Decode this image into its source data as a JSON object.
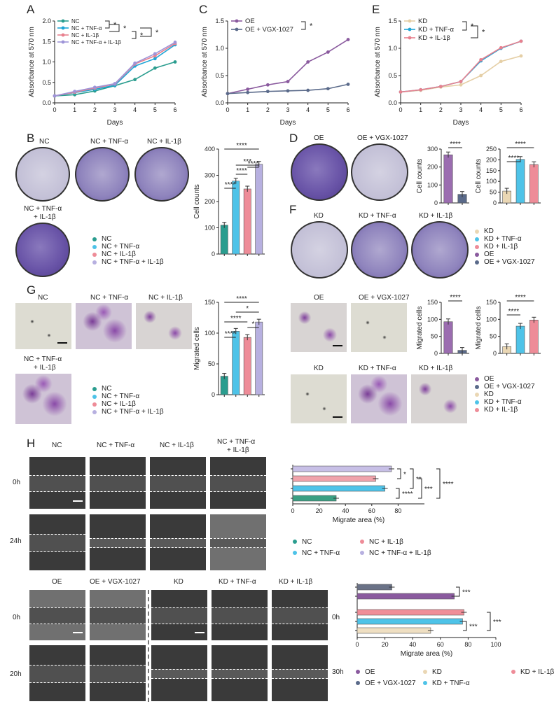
{
  "panels": {
    "A": "A",
    "B": "B",
    "C": "C",
    "D": "D",
    "E": "E",
    "F": "F",
    "G": "G",
    "H": "H"
  },
  "chart_data": [
    {
      "id": "A",
      "type": "line",
      "xlabel": "Days",
      "ylabel": "Absorbance at 570 nm",
      "x": [
        0,
        1,
        2,
        3,
        4,
        5,
        6
      ],
      "xlim": [
        0,
        6
      ],
      "ylim": [
        0,
        2.0
      ],
      "yticks": [
        "0.0",
        "0.5",
        "1.0",
        "1.5",
        "2.0"
      ],
      "series": [
        {
          "name": "NC",
          "color": "#2a9d8f",
          "values": [
            0.17,
            0.2,
            0.29,
            0.42,
            0.57,
            0.85,
            1.0
          ]
        },
        {
          "name": "NC + TNF-α",
          "color": "#1fa5d6",
          "values": [
            0.17,
            0.25,
            0.33,
            0.43,
            0.9,
            1.08,
            1.42
          ]
        },
        {
          "name": "NC + IL-1β",
          "color": "#e8808e",
          "values": [
            0.17,
            0.26,
            0.36,
            0.46,
            0.95,
            1.15,
            1.45
          ]
        },
        {
          "name": "NC + TNF-α + IL-1β",
          "color": "#9e94d8",
          "values": [
            0.17,
            0.28,
            0.38,
            0.47,
            0.97,
            1.2,
            1.48
          ]
        }
      ],
      "sig": [
        "*",
        "*",
        "*",
        "*"
      ]
    },
    {
      "id": "C",
      "type": "line",
      "xlabel": "Days",
      "ylabel": "Absorbance at 570 nm",
      "x": [
        0,
        1,
        2,
        3,
        4,
        5,
        6
      ],
      "xlim": [
        0,
        6
      ],
      "ylim": [
        0,
        1.5
      ],
      "yticks": [
        "0.0",
        "0.5",
        "1.0",
        "1.5"
      ],
      "series": [
        {
          "name": "OE",
          "color": "#8a5a9e",
          "values": [
            0.17,
            0.25,
            0.33,
            0.39,
            0.75,
            0.93,
            1.16
          ]
        },
        {
          "name": "OE + VGX-1027",
          "color": "#5a6a8a",
          "values": [
            0.17,
            0.19,
            0.21,
            0.22,
            0.23,
            0.26,
            0.34
          ]
        }
      ],
      "sig": [
        "*"
      ]
    },
    {
      "id": "E",
      "type": "line",
      "xlabel": "Days",
      "ylabel": "Absorbance at 570 nm",
      "x": [
        0,
        1,
        2,
        3,
        4,
        5,
        6
      ],
      "xlim": [
        0,
        6
      ],
      "ylim": [
        0,
        1.5
      ],
      "yticks": [
        "0.0",
        "0.5",
        "1.0",
        "1.5"
      ],
      "series": [
        {
          "name": "KD",
          "color": "#e5cfa6",
          "values": [
            0.2,
            0.23,
            0.29,
            0.33,
            0.5,
            0.76,
            0.86
          ]
        },
        {
          "name": "KD + TNF-α",
          "color": "#1fa5d6",
          "values": [
            0.2,
            0.24,
            0.3,
            0.39,
            0.77,
            1.0,
            1.13
          ]
        },
        {
          "name": "KD + IL-1β",
          "color": "#e8808e",
          "values": [
            0.2,
            0.24,
            0.3,
            0.39,
            0.79,
            1.01,
            1.13
          ]
        }
      ],
      "sig": [
        "*",
        "*"
      ]
    },
    {
      "id": "B_bar",
      "type": "bar",
      "ylabel": "Cell counts",
      "ylim": [
        0,
        400
      ],
      "yticks": [
        "0",
        "100",
        "200",
        "300",
        "400"
      ],
      "categories": [
        "NC",
        "NC + TNF-α",
        "NC + IL-1β",
        "NC + TNF-α + IL-1β"
      ],
      "values": [
        110,
        278,
        248,
        342
      ],
      "colors": [
        "#2a9d8f",
        "#4ec3e8",
        "#ee8c98",
        "#b7b0e0"
      ],
      "sig": [
        "****",
        "****",
        "****",
        "***",
        "****"
      ]
    },
    {
      "id": "D_bar1",
      "type": "bar",
      "ylabel": "Cell counts",
      "ylim": [
        0,
        300
      ],
      "yticks": [
        "0",
        "100",
        "200",
        "300"
      ],
      "categories": [
        "OE",
        "OE + VGX-1027"
      ],
      "values": [
        268,
        48
      ],
      "colors": [
        "#9b6db0",
        "#5a6a8a"
      ],
      "sig": [
        "****"
      ]
    },
    {
      "id": "D_bar2",
      "type": "bar",
      "ylabel": "Cell counts",
      "ylim": [
        0,
        250
      ],
      "yticks": [
        "0",
        "50",
        "100",
        "150",
        "200",
        "250"
      ],
      "categories": [
        "KD",
        "KD + TNF-α",
        "KD + IL-1β"
      ],
      "values": [
        55,
        202,
        178
      ],
      "colors": [
        "#ead7b4",
        "#4ec3e8",
        "#ee8c98"
      ],
      "sig": [
        "****",
        "****"
      ]
    },
    {
      "id": "G_bar",
      "type": "bar",
      "ylabel": "Migrated cells",
      "ylim": [
        0,
        150
      ],
      "yticks": [
        "0",
        "50",
        "100",
        "150"
      ],
      "categories": [
        "NC",
        "NC + TNF-α",
        "NC + IL-1β",
        "NC + TNF-α + IL-1β"
      ],
      "values": [
        30,
        103,
        93,
        118
      ],
      "colors": [
        "#2a9d8f",
        "#4ec3e8",
        "#ee8c98",
        "#b7b0e0"
      ],
      "sig": [
        "****",
        "****",
        "****",
        "*",
        "*"
      ]
    },
    {
      "id": "G_bar2",
      "type": "bar",
      "ylabel": "Migrated cells",
      "ylim": [
        0,
        150
      ],
      "yticks": [
        "0",
        "50",
        "100",
        "150"
      ],
      "categories": [
        "OE",
        "OE + VGX-1027"
      ],
      "values": [
        93,
        9
      ],
      "colors": [
        "#9b6db0",
        "#5a6a8a"
      ],
      "sig": [
        "****"
      ]
    },
    {
      "id": "G_bar3",
      "type": "bar",
      "ylabel": "Migrated cells",
      "ylim": [
        0,
        150
      ],
      "yticks": [
        "0",
        "50",
        "100",
        "150"
      ],
      "categories": [
        "KD",
        "KD + TNF-α",
        "KD + IL-1β"
      ],
      "values": [
        20,
        80,
        98
      ],
      "colors": [
        "#ead7b4",
        "#4ec3e8",
        "#ee8c98"
      ],
      "sig": [
        "****",
        "****"
      ]
    },
    {
      "id": "H_bar1",
      "type": "bar",
      "orientation": "horizontal",
      "xlabel": "Migrate area (%)",
      "xlim": [
        0,
        100
      ],
      "xticks": [
        "0",
        "20",
        "40",
        "60",
        "80"
      ],
      "categories": [
        "NC + TNF-α + IL-1β",
        "NC + IL-1β",
        "NC + TNF-α",
        "NC"
      ],
      "values": [
        75,
        63,
        70,
        33
      ],
      "colors": [
        "#c7bfe6",
        "#f0a3ab",
        "#4ec3e8",
        "#3a9f83"
      ],
      "sig": [
        "*",
        "**",
        "****",
        "***",
        "****"
      ]
    },
    {
      "id": "H_bar2",
      "type": "bar",
      "orientation": "horizontal",
      "xlabel": "Migrate area (%)",
      "xlim": [
        0,
        100
      ],
      "xticks": [
        "0",
        "20",
        "40",
        "60",
        "80",
        "100"
      ],
      "categories": [
        "OE + VGX-1027",
        "OE",
        "KD + IL-1β",
        "KD + TNF-α",
        "KD"
      ],
      "values": [
        25,
        70,
        77,
        76,
        53
      ],
      "colors": [
        "#6a7287",
        "#8a5a9e",
        "#ef8d97",
        "#4ec3e8",
        "#efdfc2"
      ],
      "sig": [
        "***",
        "***",
        "***"
      ]
    }
  ],
  "labels": {
    "days": "Days",
    "B_titles": [
      "NC",
      "NC + TNF-α",
      "NC + IL-1β"
    ],
    "B_title4a": "NC + TNF-α",
    "B_title4b": "+ IL-1β",
    "D_titles": [
      "OE",
      "OE + VGX-1027"
    ],
    "F_titles": [
      "KD",
      "KD + TNF-α",
      "KD + IL-1β"
    ],
    "G_titles": [
      "NC",
      "NC + TNF-α",
      "NC + IL-1β"
    ],
    "G_title4a": "NC + TNF-α",
    "G_title4b": "+ IL-1β",
    "G2_titles": [
      "OE",
      "OE + VGX-1027"
    ],
    "G3_titles": [
      "KD",
      "KD + TNF-α",
      "KD + IL-1β"
    ],
    "H_titles": [
      "NC",
      "NC + TNF-α",
      "NC + IL-1β"
    ],
    "H_title4a": "NC + TNF-α",
    "H_title4b": "+ IL-1β",
    "H2_titles": [
      "OE",
      "OE + VGX-1027",
      "KD",
      "KD + TNF-α",
      "KD + IL-1β"
    ],
    "times": [
      "0h",
      "24h",
      "0h",
      "20h",
      "0h",
      "30h"
    ]
  },
  "legends": {
    "nc": [
      "NC",
      "NC + TNF-α",
      "NC + IL-1β",
      "NC + TNF-α + IL-1β"
    ],
    "kdoe": [
      "KD",
      "KD + TNF-α",
      "KD + IL-1β",
      "OE",
      "OE + VGX-1027"
    ],
    "oekd": [
      "OE",
      "OE + VGX-1027",
      "KD",
      "KD + TNF-α",
      "KD + IL-1β"
    ],
    "nc_colors": [
      "#2a9d8f",
      "#4ec3e8",
      "#ee8c98",
      "#b7b0e0"
    ],
    "kdoe_colors": [
      "#ead7b4",
      "#4ec3e8",
      "#ee8c98",
      "#8a5a9e",
      "#5a6a8a"
    ],
    "oekd_colors": [
      "#8a5a9e",
      "#5a6a8a",
      "#ead7b4",
      "#4ec3e8",
      "#ee8c98"
    ]
  }
}
